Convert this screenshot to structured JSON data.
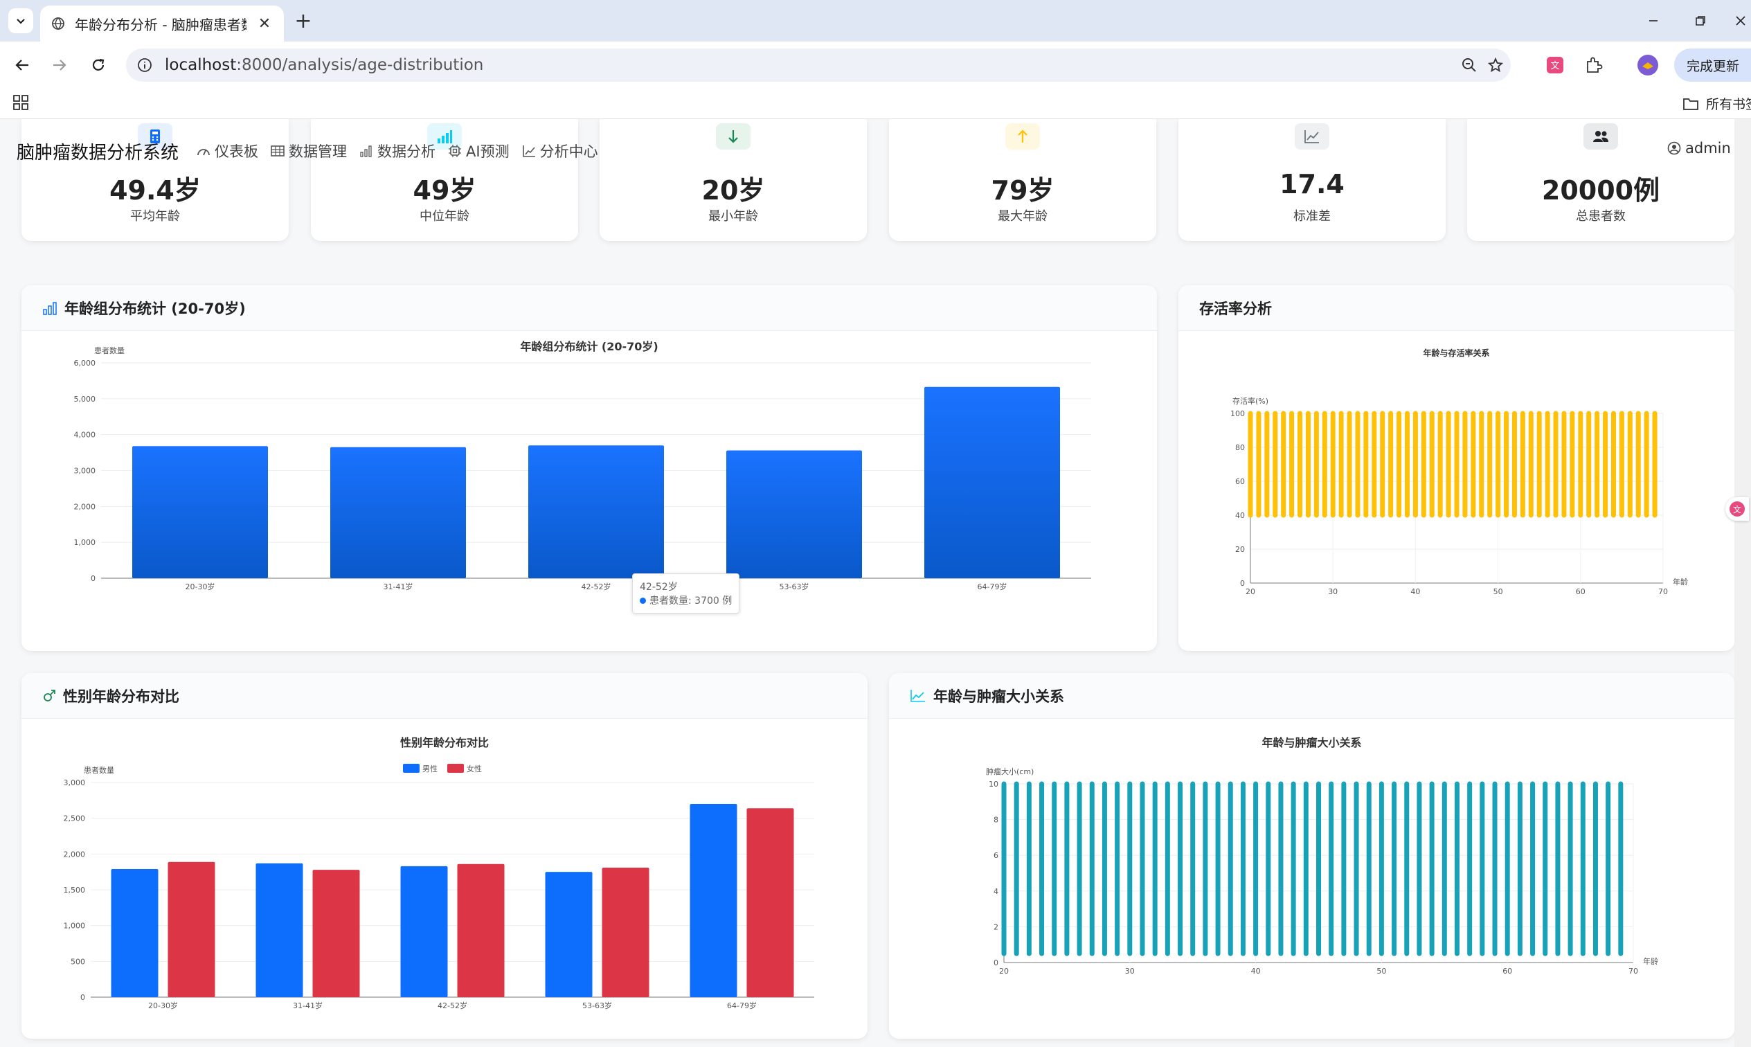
{
  "browser": {
    "tab_title": "年龄分布分析 - 脑肿瘤患者数据",
    "url_host": "localhost",
    "url_rest": ":8000/analysis/age-distribution",
    "update_label": "完成更新",
    "bookmarks_folder": "所有书签"
  },
  "nav": {
    "brand": "脑肿瘤数据分析系统",
    "items": [
      {
        "label": "仪表板",
        "icon": "dashboard-icon"
      },
      {
        "label": "数据管理",
        "icon": "table-icon"
      },
      {
        "label": "数据分析",
        "icon": "bar-chart-icon"
      },
      {
        "label": "AI预测",
        "icon": "ai-chip-icon"
      },
      {
        "label": "分析中心",
        "icon": "line-chart-icon"
      }
    ],
    "user": "admin"
  },
  "stats": [
    {
      "value": "49.4岁",
      "label": "平均年龄",
      "icon": "calculator-icon",
      "color": "#0d6efd"
    },
    {
      "value": "49岁",
      "label": "中位年龄",
      "icon": "bar-chart-icon",
      "color": "#0dcaf0"
    },
    {
      "value": "20岁",
      "label": "最小年龄",
      "icon": "arrow-down-icon",
      "color": "#198754"
    },
    {
      "value": "79岁",
      "label": "最大年龄",
      "icon": "arrow-up-icon",
      "color": "#ffc107"
    },
    {
      "value": "17.4",
      "label": "标准差",
      "icon": "line-chart-icon",
      "color": "#6c757d"
    },
    {
      "value": "20000例",
      "label": "总患者数",
      "icon": "people-icon",
      "color": "#212529"
    }
  ],
  "cards": {
    "age_group": {
      "title": "年龄组分布统计 (20-70岁)"
    },
    "survival": {
      "title": "存活率分析"
    },
    "gender": {
      "title": "性别年龄分布对比"
    },
    "tumor": {
      "title": "年龄与肿瘤大小关系"
    }
  },
  "tooltip": {
    "category": "42-52岁",
    "text": "患者数量: 3700 例"
  },
  "colors": {
    "blue": "#0d6efd",
    "red": "#dc3545",
    "orange": "#ffc107",
    "teal": "#17a2b8"
  },
  "chart_data": [
    {
      "type": "bar",
      "title": "年龄组分布统计 (20-70岁)",
      "ylabel": "患者数量",
      "categories": [
        "20-30岁",
        "31-41岁",
        "42-52岁",
        "53-63岁",
        "64-79岁"
      ],
      "values": [
        3680,
        3650,
        3700,
        3560,
        5330
      ],
      "ylim": [
        0,
        6000
      ],
      "yticks": [
        0,
        1000,
        2000,
        3000,
        4000,
        5000,
        6000
      ]
    },
    {
      "type": "scatter",
      "title": "年龄与存活率关系",
      "ylabel": "存活率(%)",
      "xlabel": "年龄",
      "xlim": [
        20,
        70
      ],
      "ylim": [
        0,
        100
      ],
      "xticks": [
        20,
        30,
        40,
        50,
        60,
        70
      ],
      "yticks": [
        0,
        20,
        40,
        60,
        80,
        100
      ],
      "x_start": 20,
      "x_end": 69,
      "y_low": 40,
      "y_high": 100
    },
    {
      "type": "bar",
      "title": "性别年龄分布对比",
      "ylabel": "患者数量",
      "categories": [
        "20-30岁",
        "31-41岁",
        "42-52岁",
        "53-63岁",
        "64-79岁"
      ],
      "series": [
        {
          "name": "男性",
          "values": [
            1790,
            1870,
            1830,
            1750,
            2700
          ]
        },
        {
          "name": "女性",
          "values": [
            1890,
            1780,
            1860,
            1810,
            2640
          ]
        }
      ],
      "ylim": [
        0,
        3000
      ],
      "yticks": [
        0,
        500,
        1000,
        1500,
        2000,
        2500,
        3000
      ]
    },
    {
      "type": "scatter",
      "title": "年龄与肿瘤大小关系",
      "ylabel": "肿瘤大小(cm)",
      "xlabel": "年龄",
      "xlim": [
        20,
        70
      ],
      "ylim": [
        0,
        10
      ],
      "xticks": [
        20,
        30,
        40,
        50,
        60,
        70
      ],
      "yticks": [
        0,
        2,
        4,
        6,
        8,
        10
      ],
      "x_start": 20,
      "x_end": 69,
      "y_low": 0.5,
      "y_high": 10
    }
  ]
}
